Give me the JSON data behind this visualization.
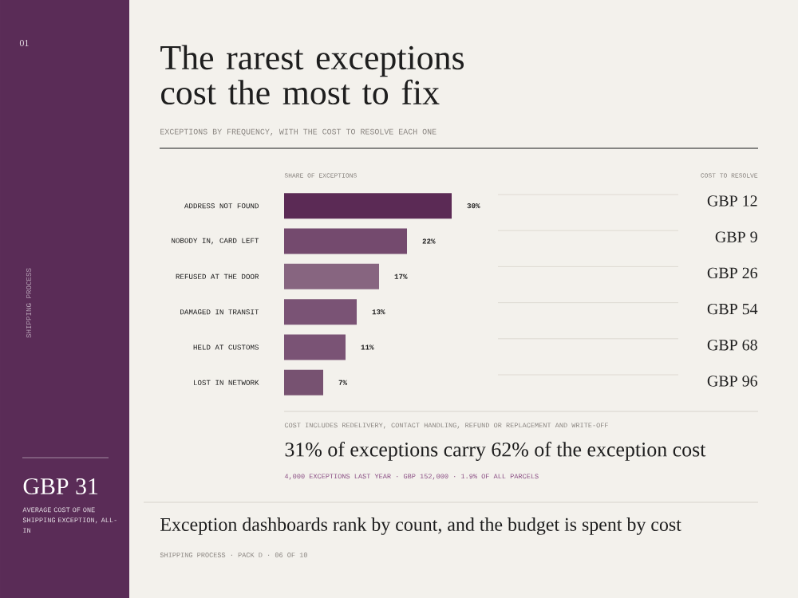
{
  "chart_data": [
    {
      "type": "bar",
      "orientation": "horizontal",
      "title": "The rarest exceptions cost the most to fix",
      "subtitle": "EXCEPTIONS BY FREQUENCY, WITH THE COST TO RESOLVE EACH ONE",
      "xlabel": "SHARE OF EXCEPTIONS",
      "categories": [
        "ADDRESS NOT FOUND",
        "NOBODY IN, CARD LEFT",
        "REFUSED AT THE DOOR",
        "DAMAGED IN TRANSIT",
        "HELD AT CUSTOMS",
        "LOST IN NETWORK"
      ],
      "values": [
        30,
        22,
        17,
        13,
        11,
        7
      ],
      "value_labels": [
        "30%",
        "22%",
        "17%",
        "13%",
        "11%",
        "7%"
      ],
      "colors": [
        "#5b2a55",
        "#744a6e",
        "#876580",
        "#7a5375",
        "#7a5375",
        "#775271"
      ],
      "xlim": [
        0,
        30
      ],
      "annotations": [
        "COST INCLUDES REDELIVERY, CONTACT HANDLING, REFUND OR REPLACEMENT AND WRITE-OFF",
        "31% of exceptions carry 62% of the exception cost",
        "4,000 EXCEPTIONS LAST YEAR · GBP 152,000 · 1.9% OF ALL PARCELS",
        "Exception dashboards rank by count, and the budget is spent by cost",
        "SHIPPING PROCESS · PACK D · 06 OF 10",
        "01",
        "SHIPPING PROCESS",
        "GBP 31",
        "AVERAGE COST OF ONE SHIPPING EXCEPTION, ALL-IN"
      ]
    },
    {
      "type": "other",
      "title": "COST TO RESOLVE",
      "annotations": [
        "GBP 12",
        "GBP 9",
        "GBP 26",
        "GBP 54",
        "GBP 68",
        "GBP 96"
      ]
    }
  ]
}
